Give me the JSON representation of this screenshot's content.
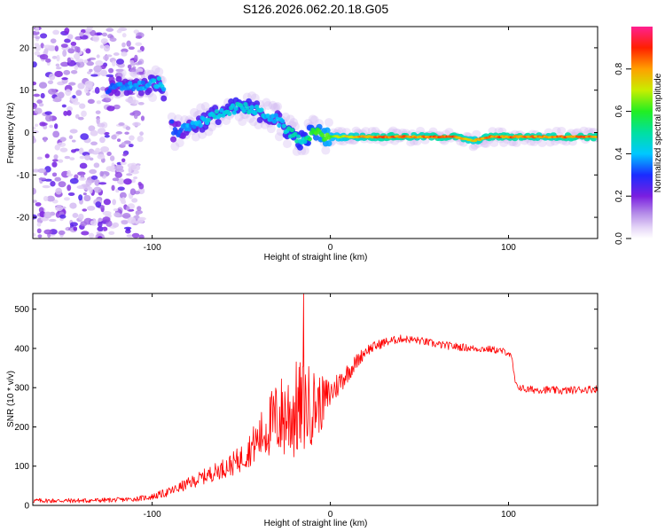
{
  "title": "S126.2026.062.20.18.G05",
  "chart_data": [
    {
      "type": "heatmap",
      "title": "S126.2026.062.20.18.G05",
      "xlabel": "Height of straight line (km)",
      "ylabel": "Frequency (Hz)",
      "xlim": [
        -167,
        150
      ],
      "ylim": [
        -25,
        25
      ],
      "xticks": [
        -100,
        0,
        100
      ],
      "xtick_labels": [
        "-100",
        "0",
        "100"
      ],
      "yticks": [
        -20,
        -10,
        0,
        10,
        20
      ],
      "ytick_labels": [
        "-20",
        "-10",
        "0",
        "10",
        "20"
      ],
      "colorbar": {
        "label": "Normalized spectral amplitude",
        "range": [
          0,
          1
        ],
        "ticks": [
          0.0,
          0.2,
          0.4,
          0.6,
          0.8
        ],
        "tick_labels": [
          "0.0",
          "0.2",
          "0.4",
          "0.6",
          "0.8"
        ],
        "colormap": "rainbow (white-lavender-purple-blue-cyan-green-yellow-orange-red-magenta)"
      },
      "ridge": {
        "x": [
          -125,
          -115,
          -105,
          -95,
          -88,
          -80,
          -70,
          -60,
          -50,
          -40,
          -30,
          -20,
          -15,
          -10,
          0,
          10,
          20,
          30,
          40,
          50,
          60,
          70,
          80,
          90,
          100,
          110,
          120,
          130,
          140,
          150
        ],
        "freq": [
          10,
          11,
          11,
          12,
          0,
          1,
          3,
          5,
          6,
          5,
          3,
          -1,
          -2,
          0,
          -1,
          -1,
          -1,
          -1,
          -1,
          -1,
          -1,
          -1,
          -2,
          -1,
          -1,
          -1,
          -1,
          -1,
          -1,
          -1
        ],
        "amplitude": [
          0.35,
          0.4,
          0.4,
          0.45,
          0.35,
          0.4,
          0.45,
          0.45,
          0.5,
          0.45,
          0.4,
          0.55,
          0.5,
          0.6,
          0.7,
          0.8,
          0.85,
          0.9,
          0.9,
          0.85,
          0.9,
          0.9,
          0.8,
          0.9,
          0.9,
          0.9,
          0.85,
          0.9,
          0.9,
          0.9
        ]
      },
      "noise_region": {
        "x": [
          -167,
          -105
        ],
        "amplitude": [
          0.05,
          0.25
        ]
      }
    },
    {
      "type": "line",
      "xlabel": "Height of straight line (km)",
      "ylabel": "SNR (10 * v/v)",
      "xlim": [
        -167,
        150
      ],
      "ylim": [
        0,
        540
      ],
      "xticks": [
        -100,
        0,
        100
      ],
      "xtick_labels": [
        "-100",
        "0",
        "100"
      ],
      "yticks": [
        0,
        100,
        200,
        300,
        400,
        500
      ],
      "ytick_labels": [
        "0",
        "100",
        "200",
        "300",
        "400",
        "500"
      ],
      "color": "#ff0000",
      "series": [
        {
          "name": "SNR",
          "x": [
            -167,
            -140,
            -120,
            -110,
            -100,
            -90,
            -80,
            -70,
            -60,
            -55,
            -50,
            -45,
            -40,
            -35,
            -30,
            -25,
            -20,
            -15,
            -10,
            -5,
            0,
            10,
            20,
            30,
            40,
            50,
            60,
            70,
            80,
            90,
            100,
            102,
            104,
            110,
            120,
            130,
            140,
            150
          ],
          "y": [
            12,
            12,
            14,
            16,
            22,
            35,
            55,
            75,
            95,
            105,
            120,
            145,
            170,
            200,
            220,
            230,
            240,
            250,
            255,
            260,
            285,
            340,
            395,
            415,
            425,
            420,
            410,
            405,
            400,
            398,
            390,
            370,
            305,
            295,
            295,
            292,
            295,
            297
          ],
          "amplitude": [
            6,
            6,
            6,
            6,
            8,
            12,
            15,
            20,
            25,
            30,
            35,
            45,
            60,
            80,
            100,
            120,
            130,
            120,
            100,
            70,
            40,
            25,
            15,
            12,
            10,
            10,
            10,
            10,
            9,
            9,
            9,
            9,
            9,
            10,
            10,
            10,
            10,
            10
          ]
        }
      ],
      "peak": {
        "x": -15,
        "y": 540
      }
    }
  ]
}
